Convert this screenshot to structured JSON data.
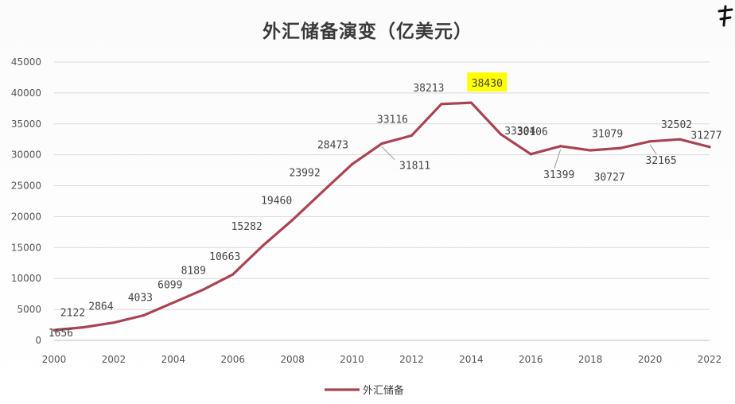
{
  "chart_data": {
    "type": "line",
    "title": "外汇储备演变（亿美元）",
    "xlabel": "",
    "ylabel": "",
    "x": [
      2000,
      2001,
      2002,
      2003,
      2004,
      2005,
      2006,
      2007,
      2008,
      2009,
      2010,
      2011,
      2012,
      2013,
      2014,
      2015,
      2016,
      2017,
      2018,
      2019,
      2020,
      2021,
      2022
    ],
    "xticks": [
      "2000",
      "2002",
      "2004",
      "2006",
      "2008",
      "2010",
      "2012",
      "2014",
      "2016",
      "2018",
      "2020",
      "2022"
    ],
    "yticks": [
      "0",
      "5000",
      "10000",
      "15000",
      "20000",
      "25000",
      "30000",
      "35000",
      "40000",
      "45000"
    ],
    "ylim": [
      0,
      45000
    ],
    "xlim": [
      2000,
      2022
    ],
    "grid": "horizontal",
    "legend_position": "bottom",
    "series": [
      {
        "name": "外汇储备",
        "color": "#a94452",
        "values": [
          1656,
          2122,
          2864,
          4033,
          6099,
          8189,
          10663,
          15282,
          19460,
          23992,
          28473,
          31811,
          33116,
          38213,
          38430,
          33304,
          30106,
          31399,
          30727,
          31079,
          32165,
          32502,
          31277
        ]
      }
    ],
    "data_labels": [
      "1656",
      "2122",
      "2864",
      "4033",
      "6099",
      "8189",
      "10663",
      "15282",
      "19460",
      "23992",
      "28473",
      "31811",
      "33116",
      "38213",
      "38430",
      "33304",
      "30106",
      "31399",
      "30727",
      "31079",
      "32165",
      "32502",
      "31277"
    ],
    "highlight": {
      "value": "38430",
      "color": "#ffff00"
    }
  }
}
